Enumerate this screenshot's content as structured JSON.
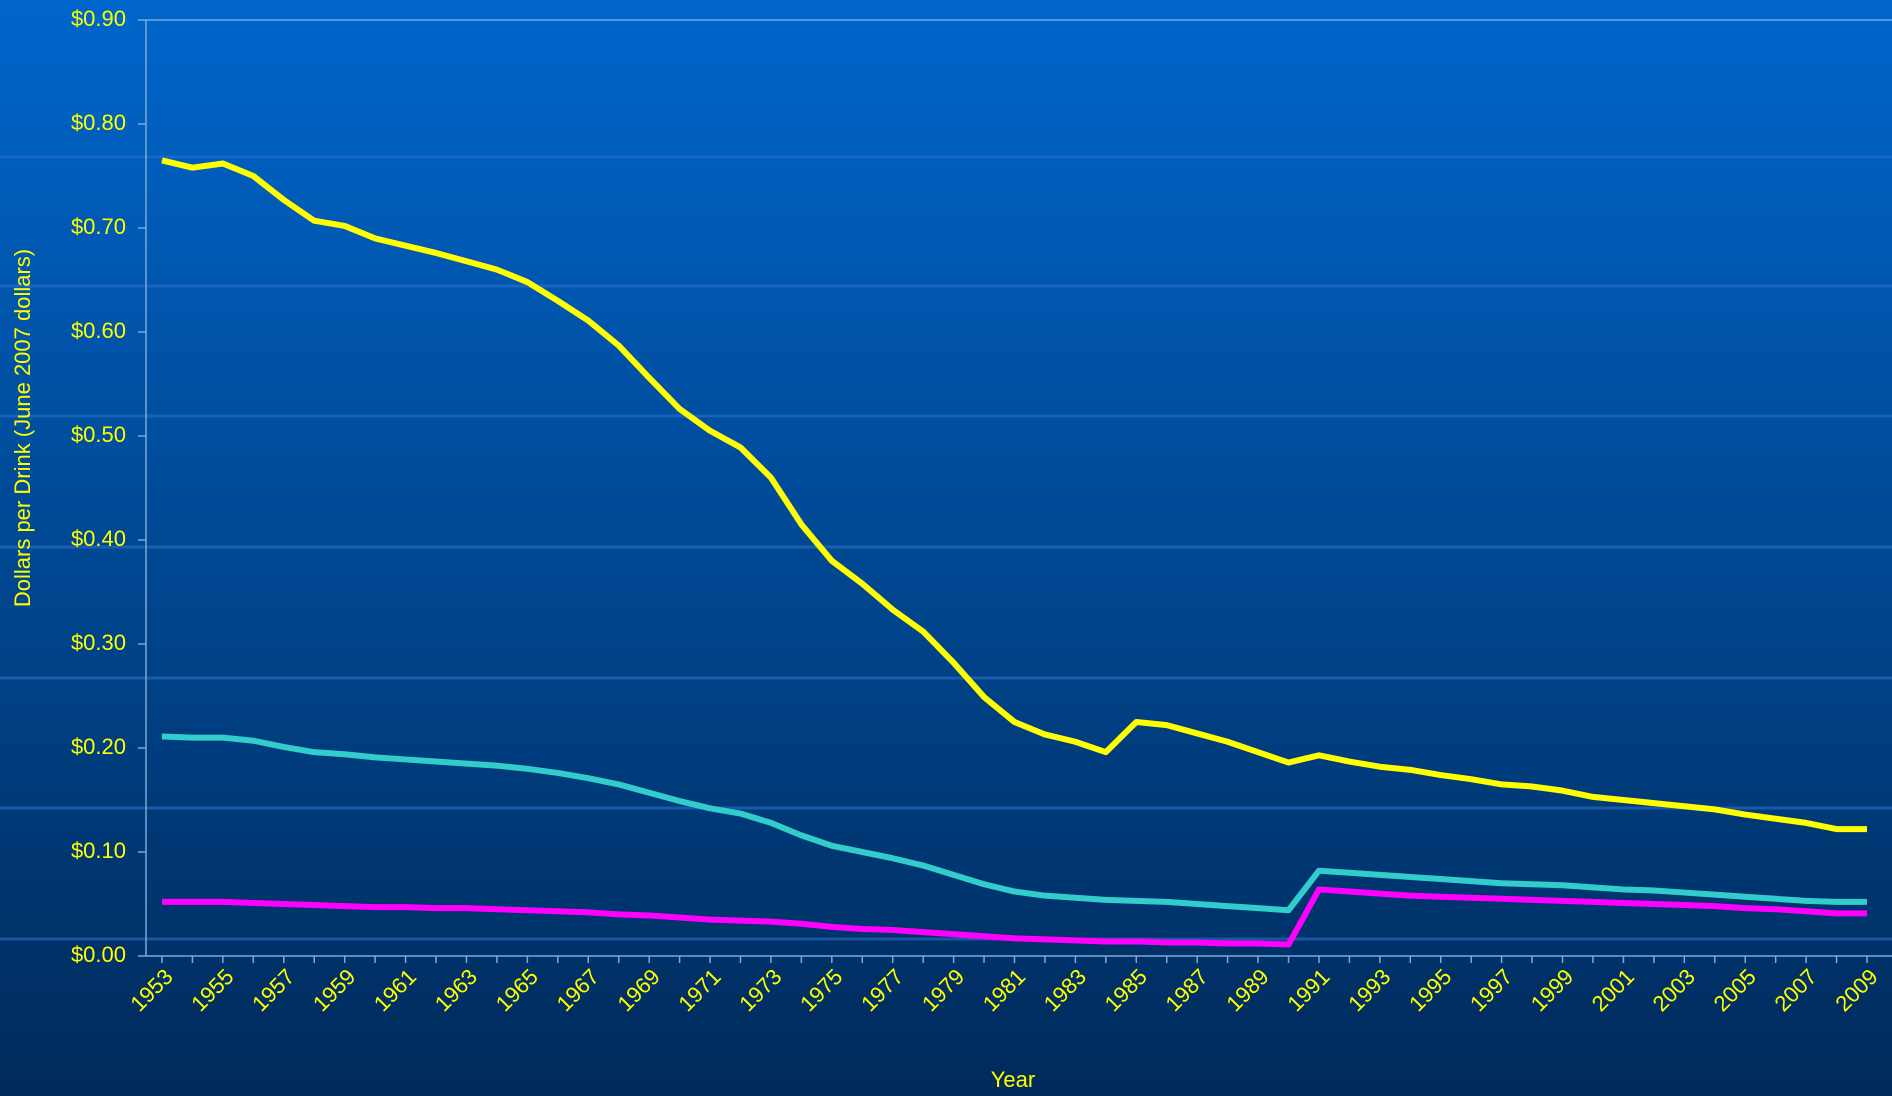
{
  "chart_data": {
    "type": "line",
    "y_label": "Dollars per Drink (June 2007 dollars)",
    "x_label": "Year",
    "categories": [
      "1953",
      null,
      "1955",
      null,
      "1957",
      null,
      "1959",
      null,
      "1961",
      null,
      "1963",
      null,
      "1965",
      null,
      "1967",
      null,
      "1969",
      null,
      "1971",
      null,
      "1973",
      null,
      "1975",
      null,
      "1977",
      null,
      "1979",
      null,
      "1981",
      null,
      "1983",
      null,
      "1985",
      null,
      "1987",
      null,
      "1989",
      null,
      "1991",
      null,
      "1993",
      null,
      "1995",
      null,
      "1997",
      null,
      "1999",
      null,
      "2001",
      null,
      "2003",
      null,
      "2005",
      null,
      "2007",
      null,
      "2009"
    ],
    "series": [
      {
        "color": "#ffff00",
        "values": [
          0.765,
          0.758,
          0.762,
          0.75,
          0.727,
          0.707,
          0.702,
          0.69,
          0.683,
          0.676,
          0.668,
          0.66,
          0.648,
          0.63,
          0.611,
          0.587,
          0.556,
          0.526,
          0.505,
          0.489,
          0.46,
          0.415,
          0.38,
          0.358,
          0.333,
          0.312,
          0.282,
          0.249,
          0.225,
          0.213,
          0.206,
          0.196,
          0.225,
          0.222,
          0.214,
          0.206,
          0.196,
          0.186,
          0.193,
          0.187,
          0.182,
          0.179,
          0.174,
          0.17,
          0.165,
          0.163,
          0.159,
          0.153,
          0.15,
          0.147,
          0.144,
          0.141,
          0.136,
          0.132,
          0.128,
          0.122,
          0.122
        ]
      },
      {
        "color": "#33cccc",
        "values": [
          0.211,
          0.21,
          0.21,
          0.207,
          0.201,
          0.196,
          0.194,
          0.191,
          0.189,
          0.187,
          0.185,
          0.183,
          0.18,
          0.176,
          0.171,
          0.165,
          0.157,
          0.149,
          0.142,
          0.137,
          0.128,
          0.116,
          0.106,
          0.1,
          0.094,
          0.087,
          0.078,
          0.069,
          0.062,
          0.058,
          0.056,
          0.054,
          0.053,
          0.052,
          0.05,
          0.048,
          0.046,
          0.044,
          0.082,
          0.08,
          0.078,
          0.076,
          0.074,
          0.072,
          0.07,
          0.069,
          0.068,
          0.066,
          0.064,
          0.063,
          0.061,
          0.059,
          0.057,
          0.055,
          0.053,
          0.052,
          0.052
        ]
      },
      {
        "color": "#ff00ff",
        "values": [
          0.052,
          0.052,
          0.052,
          0.051,
          0.05,
          0.049,
          0.048,
          0.047,
          0.047,
          0.046,
          0.046,
          0.045,
          0.044,
          0.043,
          0.042,
          0.04,
          0.039,
          0.037,
          0.035,
          0.034,
          0.033,
          0.031,
          0.028,
          0.026,
          0.025,
          0.023,
          0.021,
          0.019,
          0.017,
          0.016,
          0.015,
          0.014,
          0.014,
          0.013,
          0.013,
          0.012,
          0.012,
          0.011,
          0.064,
          0.062,
          0.06,
          0.058,
          0.057,
          0.056,
          0.055,
          0.054,
          0.053,
          0.052,
          0.051,
          0.05,
          0.049,
          0.048,
          0.046,
          0.045,
          0.043,
          0.041,
          0.041
        ]
      }
    ],
    "ylim": [
      0,
      0.9
    ],
    "yticks": [
      {
        "value": 0,
        "label": "$0.00"
      },
      {
        "value": 0.1,
        "label": "$0.10"
      },
      {
        "value": 0.2,
        "label": "$0.20"
      },
      {
        "value": 0.3,
        "label": "$0.30"
      },
      {
        "value": 0.4,
        "label": "$0.40"
      },
      {
        "value": 0.5,
        "label": "$0.50"
      },
      {
        "value": 0.6,
        "label": "$0.60"
      },
      {
        "value": 0.7,
        "label": "$0.70"
      },
      {
        "value": 0.8,
        "label": "$0.80"
      },
      {
        "value": 0.9,
        "label": "$0.90"
      }
    ]
  }
}
